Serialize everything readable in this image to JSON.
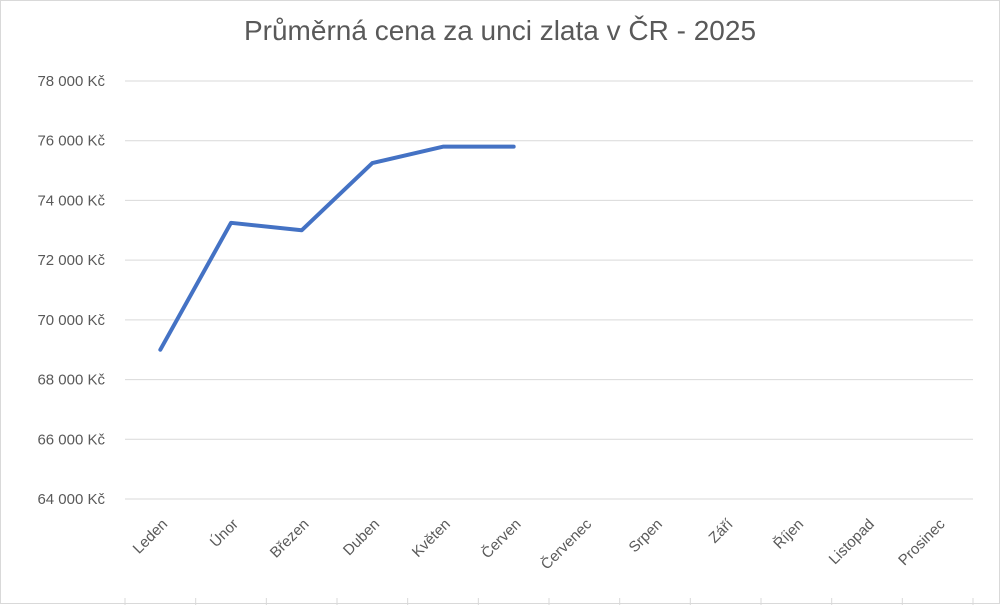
{
  "chart_data": {
    "type": "line",
    "title": "Průměrná cena za unci zlata v ČR - 2025",
    "categories": [
      "Leden",
      "Únor",
      "Březen",
      "Duben",
      "Květen",
      "Červen",
      "Červenec",
      "Srpen",
      "Září",
      "Říjen",
      "Listopad",
      "Prosinec"
    ],
    "series": [
      {
        "values": [
          69000,
          73250,
          73000,
          75250,
          75800,
          75800,
          null,
          null,
          null,
          null,
          null,
          null
        ]
      }
    ],
    "ylim": [
      64000,
      78000
    ],
    "yticks": [
      64000,
      66000,
      68000,
      70000,
      72000,
      74000,
      76000,
      78000
    ],
    "ytick_labels": [
      "64 000 Kč",
      "66 000 Kč",
      "68 000 Kč",
      "70 000 Kč",
      "72 000 Kč",
      "74 000 Kč",
      "76 000 Kč",
      "78 000 Kč"
    ],
    "xlabel": "",
    "ylabel": "",
    "grid": true,
    "legend": "none",
    "colors": {
      "series": "#4472c4",
      "grid": "#d9d9d9",
      "text": "#595959"
    }
  }
}
